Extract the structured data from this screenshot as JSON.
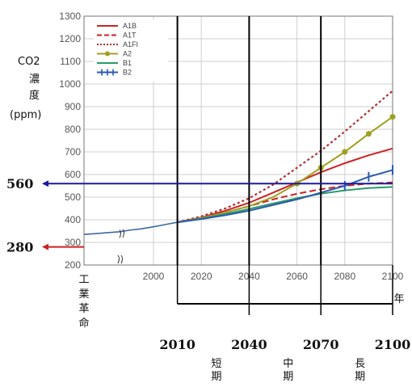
{
  "chart_data": {
    "type": "line",
    "ylabel": [
      "CO2",
      "濃",
      "度",
      "(ppm)"
    ],
    "ylim": [
      200,
      1300
    ],
    "xlim": [
      1980,
      2100
    ],
    "y_ticks": [
      200,
      300,
      400,
      500,
      600,
      700,
      800,
      900,
      1000,
      1100,
      1200,
      1300
    ],
    "x_ticks": [
      2000,
      2020,
      2040,
      2060,
      2080,
      2100
    ],
    "left_markers": [
      {
        "value": 560,
        "label": "560",
        "color": "#1a1aa0"
      },
      {
        "value": 280,
        "label": "280",
        "color": "#cc2222"
      }
    ],
    "left_axis_note": "工業革命",
    "year_unit": "年",
    "timeline_years": [
      2010,
      2040,
      2070,
      2100
    ],
    "vertical_lines": [
      2010,
      2040,
      2070
    ],
    "horizontal_line": 560,
    "periods": [
      {
        "label": [
          "短",
          "期"
        ]
      },
      {
        "label": [
          "中",
          "期"
        ]
      },
      {
        "label": [
          "長",
          "期"
        ]
      }
    ],
    "historical": {
      "x": [
        1980,
        1986,
        1990,
        1995,
        2000,
        2005,
        2010
      ],
      "values": [
        335,
        347,
        354,
        360,
        369,
        379,
        389
      ]
    },
    "series": [
      {
        "name": "A1B",
        "color": "#cc2222",
        "style": "solid",
        "x": [
          2010,
          2020,
          2030,
          2040,
          2050,
          2060,
          2070,
          2080,
          2090,
          2100
        ],
        "values": [
          389,
          410,
          440,
          475,
          520,
          565,
          610,
          650,
          685,
          715
        ]
      },
      {
        "name": "A1T",
        "color": "#cc2222",
        "style": "dashed",
        "x": [
          2010,
          2020,
          2030,
          2040,
          2050,
          2060,
          2070,
          2080,
          2090,
          2100
        ],
        "values": [
          389,
          408,
          432,
          460,
          490,
          515,
          535,
          550,
          560,
          565
        ]
      },
      {
        "name": "A1FI",
        "color": "#b03030",
        "style": "dotted",
        "x": [
          2010,
          2020,
          2030,
          2040,
          2050,
          2060,
          2070,
          2080,
          2090,
          2100
        ],
        "values": [
          389,
          415,
          450,
          495,
          555,
          630,
          705,
          790,
          880,
          970
        ]
      },
      {
        "name": "A2",
        "color": "#a0a020",
        "style": "dot-marker",
        "x": [
          2010,
          2020,
          2030,
          2040,
          2050,
          2060,
          2070,
          2080,
          2090,
          2100
        ],
        "values": [
          389,
          408,
          432,
          460,
          500,
          560,
          630,
          700,
          780,
          855
        ]
      },
      {
        "name": "B1",
        "color": "#2a9a6a",
        "style": "solid",
        "x": [
          2010,
          2020,
          2030,
          2040,
          2050,
          2060,
          2070,
          2080,
          2090,
          2100
        ],
        "values": [
          389,
          405,
          425,
          448,
          472,
          495,
          515,
          530,
          540,
          545
        ]
      },
      {
        "name": "B2",
        "color": "#2a5ab0",
        "style": "cross-marker",
        "x": [
          2010,
          2020,
          2030,
          2040,
          2050,
          2060,
          2070,
          2080,
          2090,
          2100
        ],
        "values": [
          389,
          403,
          420,
          440,
          465,
          490,
          520,
          550,
          590,
          620
        ]
      }
    ]
  }
}
